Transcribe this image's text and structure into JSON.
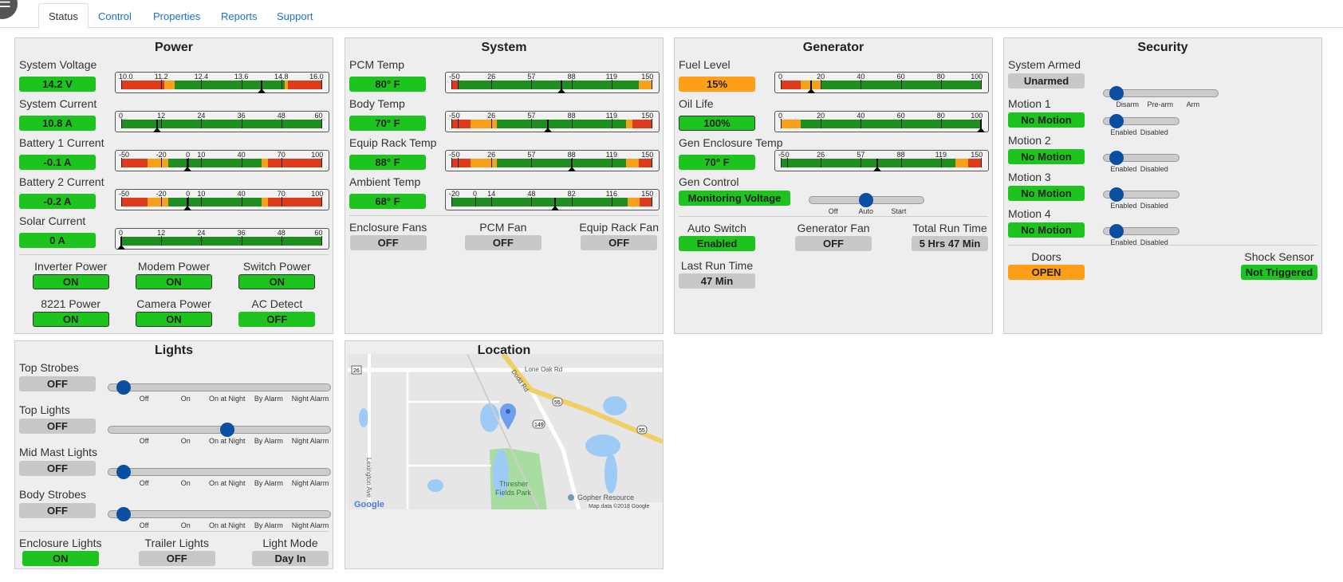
{
  "tabs": [
    {
      "label": "Status",
      "active": true
    },
    {
      "label": "Control"
    },
    {
      "label": "Properties"
    },
    {
      "label": "Reports"
    },
    {
      "label": "Support"
    }
  ],
  "colors": {
    "red": "#dd3b1c",
    "orange": "#f7a11a",
    "green": "#1e8f1e",
    "badge_green": "#1ec41e",
    "badge_orange": "#ff9e17",
    "badge_grey": "#c8c8c8",
    "slider_thumb": "#0b4fa3",
    "tab_link": "#1a6fd0"
  },
  "power": {
    "title": "Power",
    "gauges": [
      {
        "label": "System Voltage",
        "value_text": "14.2 V",
        "status": "g",
        "min": 10,
        "max": 16,
        "ticks": [
          10,
          11.2,
          12.4,
          13.6,
          14.8,
          16
        ],
        "tick_labels": [
          "10.0",
          "11.2",
          "12.4",
          "13.6",
          "14.8",
          "16.0"
        ],
        "zones": [
          [
            10,
            11.3,
            "red"
          ],
          [
            11.3,
            11.6,
            "orange"
          ],
          [
            11.6,
            14.9,
            "green"
          ],
          [
            14.9,
            15,
            "orange"
          ],
          [
            15,
            16,
            "red"
          ]
        ],
        "value": 14.2
      },
      {
        "label": "System Current",
        "value_text": "10.8 A",
        "status": "g",
        "min": 0,
        "max": 60,
        "ticks": [
          0,
          12,
          24,
          36,
          48,
          60
        ],
        "tick_labels": [
          "0",
          "12",
          "24",
          "36",
          "48",
          "60"
        ],
        "zones": [
          [
            0,
            60,
            "green"
          ]
        ],
        "value": 10.8
      },
      {
        "label": "Battery 1 Current",
        "value_text": "-0.1 A",
        "status": "g",
        "min": -50,
        "max": 100,
        "ticks": [
          -50,
          -20,
          0,
          10,
          40,
          70,
          100
        ],
        "tick_labels": [
          "-50",
          "-20",
          "0",
          "10",
          "40",
          "70",
          "100"
        ],
        "zones": [
          [
            -50,
            -30,
            "red"
          ],
          [
            -30,
            -15,
            "orange"
          ],
          [
            -15,
            55,
            "green"
          ],
          [
            55,
            60,
            "orange"
          ],
          [
            60,
            100,
            "red"
          ]
        ],
        "value": -0.1
      },
      {
        "label": "Battery 2 Current",
        "value_text": "-0.2 A",
        "status": "g",
        "min": -50,
        "max": 100,
        "ticks": [
          -50,
          -20,
          0,
          10,
          40,
          70,
          100
        ],
        "tick_labels": [
          "-50",
          "-20",
          "0",
          "10",
          "40",
          "70",
          "100"
        ],
        "zones": [
          [
            -50,
            -30,
            "red"
          ],
          [
            -30,
            -15,
            "orange"
          ],
          [
            -15,
            55,
            "green"
          ],
          [
            55,
            60,
            "orange"
          ],
          [
            60,
            100,
            "red"
          ]
        ],
        "value": -0.2
      },
      {
        "label": "Solar Current",
        "value_text": "0 A",
        "status": "g",
        "min": 0,
        "max": 60,
        "ticks": [
          0,
          12,
          24,
          36,
          48,
          60
        ],
        "tick_labels": [
          "0",
          "12",
          "24",
          "36",
          "48",
          "60"
        ],
        "zones": [
          [
            0,
            60,
            "green"
          ]
        ],
        "value": 0
      }
    ],
    "switches": [
      {
        "label": "Inverter Power",
        "value": "ON"
      },
      {
        "label": "Modem Power",
        "value": "ON"
      },
      {
        "label": "Switch Power",
        "value": "ON"
      },
      {
        "label": "8221 Power",
        "value": "ON"
      },
      {
        "label": "Camera Power",
        "value": "ON"
      },
      {
        "label": "AC Detect",
        "value": "OFF"
      }
    ]
  },
  "system": {
    "title": "System",
    "gauges": [
      {
        "label": "PCM Temp",
        "value_text": "80° F",
        "status": "g",
        "min": -5,
        "max": 150,
        "ticks": [
          -5,
          0,
          26,
          57,
          88,
          119,
          150
        ],
        "tick_labels": [
          "-5",
          "0",
          "26",
          "57",
          "88",
          "119",
          "150"
        ],
        "zones": [
          [
            -5,
            0,
            "red"
          ],
          [
            0,
            140,
            "green"
          ],
          [
            140,
            150,
            "orange"
          ]
        ],
        "value": 80
      },
      {
        "label": "Body Temp",
        "value_text": "70° F",
        "status": "g",
        "min": -5,
        "max": 150,
        "ticks": [
          -5,
          0,
          26,
          57,
          88,
          119,
          150
        ],
        "tick_labels": [
          "-5",
          "0",
          "26",
          "57",
          "88",
          "119",
          "150"
        ],
        "zones": [
          [
            -5,
            10,
            "red"
          ],
          [
            10,
            30,
            "orange"
          ],
          [
            30,
            130,
            "green"
          ],
          [
            130,
            135,
            "orange"
          ],
          [
            135,
            150,
            "red"
          ]
        ],
        "value": 70
      },
      {
        "label": "Equip Rack Temp",
        "value_text": "88° F",
        "status": "g",
        "min": -5,
        "max": 150,
        "ticks": [
          -5,
          0,
          26,
          57,
          88,
          119,
          150
        ],
        "tick_labels": [
          "-5",
          "0",
          "26",
          "57",
          "88",
          "119",
          "150"
        ],
        "zones": [
          [
            -5,
            10,
            "red"
          ],
          [
            10,
            30,
            "orange"
          ],
          [
            30,
            130,
            "green"
          ],
          [
            130,
            140,
            "orange"
          ],
          [
            140,
            150,
            "red"
          ]
        ],
        "value": 88
      },
      {
        "label": "Ambient Temp",
        "value_text": "68° F",
        "status": "g",
        "min": -20,
        "max": 150,
        "ticks": [
          -20,
          0,
          14,
          48,
          82,
          116,
          150
        ],
        "tick_labels": [
          "-20",
          "0",
          "14",
          "48",
          "82",
          "116",
          "150"
        ],
        "zones": [
          [
            -20,
            130,
            "green"
          ],
          [
            130,
            140,
            "orange"
          ],
          [
            140,
            150,
            "red"
          ]
        ],
        "value": 68
      }
    ],
    "fans": [
      {
        "label": "Enclosure Fans",
        "value": "OFF"
      },
      {
        "label": "PCM Fan",
        "value": "OFF"
      },
      {
        "label": "Equip Rack Fan",
        "value": "OFF"
      }
    ]
  },
  "generator": {
    "title": "Generator",
    "gauges": [
      {
        "label": "Fuel Level",
        "value_text": "15%",
        "status": "o",
        "min": 0,
        "max": 100,
        "ticks": [
          0,
          20,
          40,
          60,
          80,
          100
        ],
        "tick_labels": [
          "0",
          "20",
          "40",
          "60",
          "80",
          "100"
        ],
        "zones": [
          [
            0,
            10,
            "red"
          ],
          [
            10,
            20,
            "orange"
          ],
          [
            20,
            100,
            "green"
          ]
        ],
        "value": 15
      },
      {
        "label": "Oil Life",
        "value_text": "100%",
        "status": "g bd",
        "min": 0,
        "max": 100,
        "ticks": [
          0,
          20,
          40,
          60,
          80,
          100
        ],
        "tick_labels": [
          "0",
          "20",
          "40",
          "60",
          "80",
          "100"
        ],
        "zones": [
          [
            0,
            10,
            "orange"
          ],
          [
            10,
            100,
            "green"
          ]
        ],
        "value": 100
      },
      {
        "label": "Gen Enclosure Temp",
        "value_text": "70° F",
        "status": "g",
        "min": -5,
        "max": 150,
        "ticks": [
          -5,
          0,
          26,
          57,
          88,
          119,
          150
        ],
        "tick_labels": [
          "-5",
          "0",
          "26",
          "57",
          "88",
          "119",
          "150"
        ],
        "zones": [
          [
            -5,
            130,
            "green"
          ],
          [
            130,
            140,
            "orange"
          ],
          [
            140,
            150,
            "red"
          ]
        ],
        "value": 70
      }
    ],
    "control": {
      "label": "Gen Control",
      "value": "Monitoring Voltage",
      "options": [
        "Off",
        "Auto",
        "Start"
      ],
      "selected": 1
    },
    "auto_switch": {
      "label": "Auto Switch",
      "value": "Enabled"
    },
    "fan": {
      "label": "Generator Fan",
      "value": "OFF"
    },
    "total_run": {
      "label": "Total Run Time",
      "value": "5 Hrs 47 Min"
    },
    "last_run": {
      "label": "Last Run Time",
      "value": "47 Min"
    }
  },
  "security": {
    "title": "Security",
    "armed": {
      "label": "System Armed",
      "value": "Unarmed",
      "options": [
        "Disarm",
        "Pre-arm",
        "Arm"
      ],
      "selected": 0
    },
    "motions": [
      {
        "label": "Motion 1",
        "value": "No Motion",
        "options": [
          "Enabled",
          "Disabled"
        ],
        "selected": 0
      },
      {
        "label": "Motion 2",
        "value": "No Motion",
        "options": [
          "Enabled",
          "Disabled"
        ],
        "selected": 0
      },
      {
        "label": "Motion 3",
        "value": "No Motion",
        "options": [
          "Enabled",
          "Disabled"
        ],
        "selected": 0
      },
      {
        "label": "Motion 4",
        "value": "No Motion",
        "options": [
          "Enabled",
          "Disabled"
        ],
        "selected": 0
      }
    ],
    "doors": {
      "label": "Doors",
      "value": "OPEN"
    },
    "shock": {
      "label": "Shock Sensor",
      "value": "Not Triggered"
    }
  },
  "lights": {
    "title": "Lights",
    "options": [
      "Off",
      "On",
      "On at Night",
      "By Alarm",
      "Night Alarm"
    ],
    "items": [
      {
        "label": "Top Strobes",
        "value": "OFF",
        "selected": 0
      },
      {
        "label": "Top Lights",
        "value": "OFF",
        "selected": 2
      },
      {
        "label": "Mid Mast Lights",
        "value": "OFF",
        "selected": 0
      },
      {
        "label": "Body Strobes",
        "value": "OFF",
        "selected": 0
      }
    ],
    "enclosure": {
      "label": "Enclosure Lights",
      "value": "ON"
    },
    "trailer": {
      "label": "Trailer Lights",
      "value": "OFF"
    },
    "mode": {
      "label": "Light Mode",
      "value": "Day In"
    }
  },
  "location": {
    "title": "Location",
    "map": {
      "road1": "Lone Oak Rd",
      "road2": "Dodd Rd",
      "road3": "Lexington Ave",
      "shield1": "26",
      "shield2": "55",
      "shield3": "55",
      "shield4": "149",
      "park": "Thresher Fields Park",
      "park_line1": "Thresher",
      "park_line2": "Fields Park",
      "poi": "Gopher Resource",
      "attribution": "Map data ©2018 Google",
      "logo": "Google"
    }
  }
}
